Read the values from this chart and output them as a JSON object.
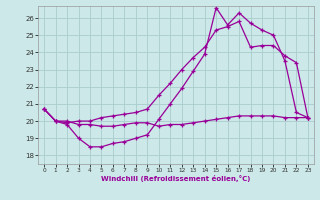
{
  "xlabel": "Windchill (Refroidissement éolien,°C)",
  "background_color": "#cce8e8",
  "line_color": "#990099",
  "grid_color": "#aacccc",
  "x_ticks": [
    0,
    1,
    2,
    3,
    4,
    5,
    6,
    7,
    8,
    9,
    10,
    11,
    12,
    13,
    14,
    15,
    16,
    17,
    18,
    19,
    20,
    21,
    22,
    23
  ],
  "y_ticks": [
    18,
    19,
    20,
    21,
    22,
    23,
    24,
    25,
    26
  ],
  "ylim": [
    17.5,
    26.7
  ],
  "xlim": [
    -0.5,
    23.5
  ],
  "line1_x": [
    0,
    1,
    2,
    3,
    4,
    5,
    6,
    7,
    8,
    9,
    10,
    11,
    12,
    13,
    14,
    15,
    16,
    17,
    18,
    19,
    20,
    21,
    22,
    23
  ],
  "line1_y": [
    20.7,
    20.0,
    19.8,
    19.0,
    18.5,
    18.5,
    18.7,
    18.8,
    19.0,
    19.2,
    20.1,
    21.0,
    21.9,
    22.9,
    23.9,
    26.6,
    25.6,
    26.3,
    25.7,
    25.3,
    25.0,
    23.5,
    20.5,
    20.2
  ],
  "line2_x": [
    0,
    1,
    2,
    3,
    4,
    5,
    6,
    7,
    8,
    9,
    10,
    11,
    12,
    13,
    14,
    15,
    16,
    17,
    18,
    19,
    20,
    21,
    22,
    23
  ],
  "line2_y": [
    20.7,
    20.0,
    19.9,
    20.0,
    20.0,
    20.2,
    20.3,
    20.4,
    20.5,
    20.7,
    21.5,
    22.2,
    23.0,
    23.7,
    24.3,
    25.3,
    25.5,
    25.8,
    24.3,
    24.4,
    24.4,
    23.8,
    23.4,
    20.2
  ],
  "line3_x": [
    0,
    1,
    2,
    3,
    4,
    5,
    6,
    7,
    8,
    9,
    10,
    11,
    12,
    13,
    14,
    15,
    16,
    17,
    18,
    19,
    20,
    21,
    22,
    23
  ],
  "line3_y": [
    20.7,
    20.0,
    20.0,
    19.8,
    19.8,
    19.7,
    19.7,
    19.8,
    19.9,
    19.9,
    19.7,
    19.8,
    19.8,
    19.9,
    20.0,
    20.1,
    20.2,
    20.3,
    20.3,
    20.3,
    20.3,
    20.2,
    20.2,
    20.2
  ]
}
